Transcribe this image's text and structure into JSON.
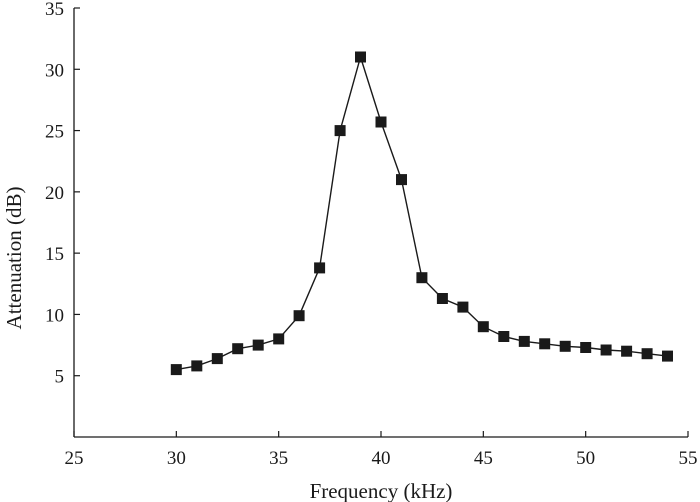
{
  "chart_data": {
    "type": "line",
    "title": "",
    "xlabel": "Frequency (kHz)",
    "ylabel": "Attenuation (dB)",
    "xlim": [
      25,
      55
    ],
    "ylim": [
      0,
      35
    ],
    "xticks": [
      "25",
      "30",
      "35",
      "40",
      "45",
      "50",
      "55"
    ],
    "yticks": [
      "5",
      "10",
      "15",
      "20",
      "25",
      "30",
      "35"
    ],
    "grid": false,
    "marker": "square",
    "colors": {
      "line": "#1a1a1a",
      "marker": "#1a1a1a",
      "axis": "#1a1a1a"
    },
    "series": [
      {
        "x": [
          30,
          31,
          32,
          33,
          34,
          35,
          36,
          37,
          38,
          39,
          40,
          41,
          42,
          43,
          44,
          45,
          46,
          47,
          48,
          49,
          50,
          51,
          52,
          53,
          54
        ],
        "y": [
          5.5,
          5.8,
          6.4,
          7.2,
          7.5,
          8.0,
          9.9,
          13.8,
          25.0,
          31.0,
          25.7,
          21.0,
          13.0,
          11.3,
          10.6,
          9.0,
          8.2,
          7.8,
          7.6,
          7.4,
          7.3,
          7.1,
          7.0,
          6.8,
          6.6
        ]
      }
    ]
  }
}
